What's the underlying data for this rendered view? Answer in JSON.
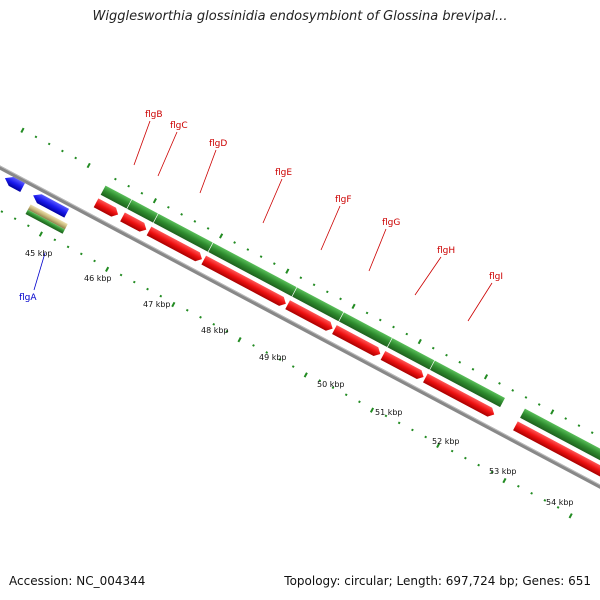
{
  "title": "Wigglesworthia glossinidia endosymbiont of Glossina brevipal...",
  "footer": {
    "accession": "Accession: NC_004344",
    "info": "Topology: circular; Length: 697,724 bp; Genes: 651"
  },
  "colors": {
    "forward_cds": "#2e8b2e",
    "cds": "#ee1111",
    "reverse_cds": "#1a1aee",
    "rna": "#c8b87a",
    "other": "#b5f23a",
    "backbone": "#888888",
    "ticks": "#228b22",
    "label_fwd": "#cc0000",
    "label_rev": "#0000cc"
  },
  "scale_labels": [
    "45 kbp",
    "46 kbp",
    "47 kbp",
    "48 kbp",
    "49 kbp",
    "50 kbp",
    "51 kbp",
    "52 kbp",
    "53 kbp",
    "54 kbp"
  ],
  "genes": [
    {
      "name": "flgA",
      "strand": "reverse"
    },
    {
      "name": "flgB",
      "strand": "forward"
    },
    {
      "name": "flgC",
      "strand": "forward"
    },
    {
      "name": "flgD",
      "strand": "forward"
    },
    {
      "name": "flgE",
      "strand": "forward"
    },
    {
      "name": "flgF",
      "strand": "forward"
    },
    {
      "name": "flgG",
      "strand": "forward"
    },
    {
      "name": "flgH",
      "strand": "forward"
    },
    {
      "name": "flgI",
      "strand": "forward"
    }
  ]
}
